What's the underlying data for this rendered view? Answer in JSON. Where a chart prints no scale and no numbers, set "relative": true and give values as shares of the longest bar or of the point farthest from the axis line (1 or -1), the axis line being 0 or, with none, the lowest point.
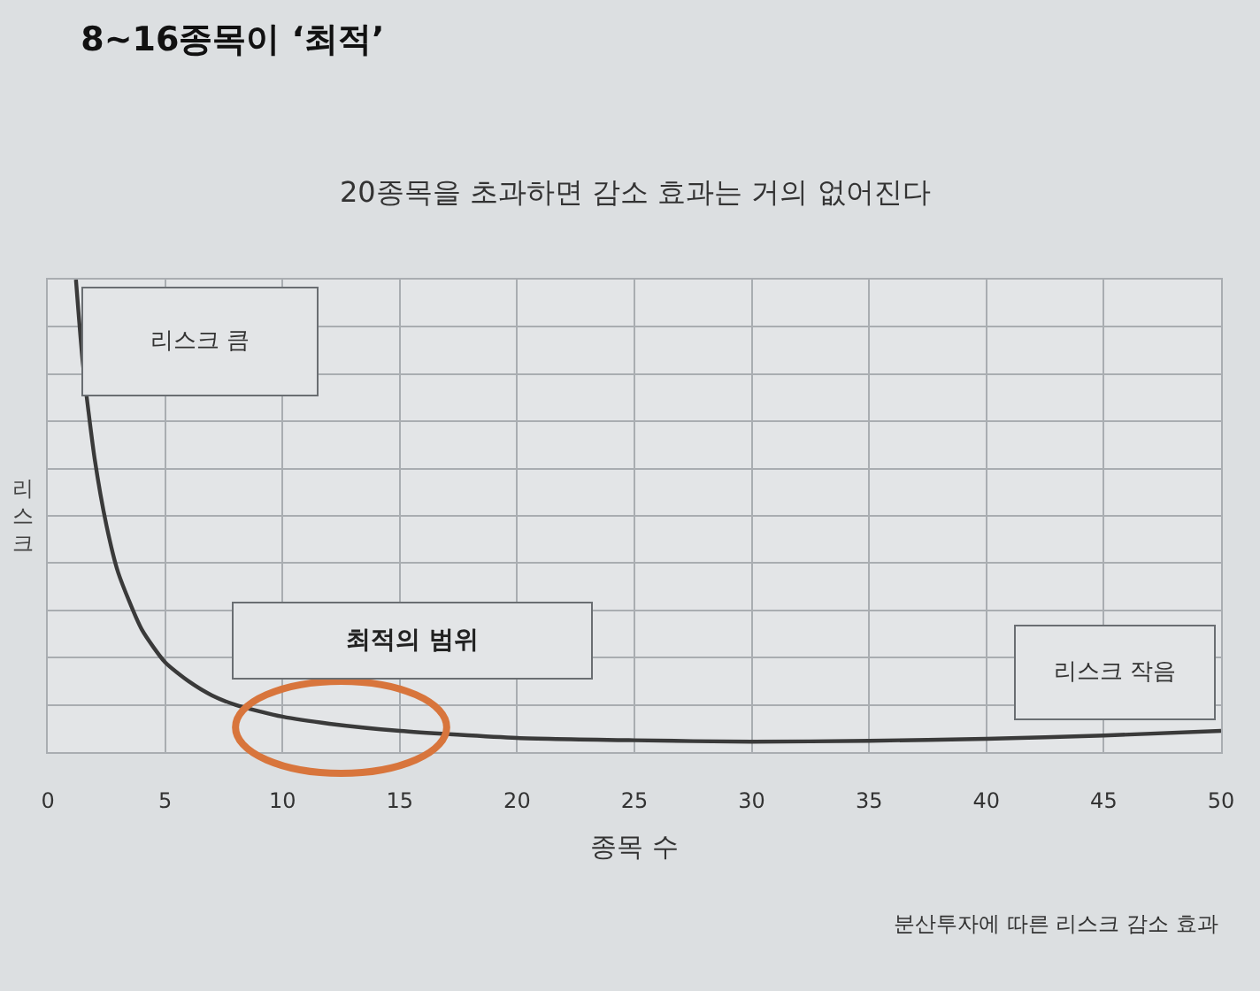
{
  "chart_data": {
    "type": "line",
    "title": "8~16종목이 ‘최적’",
    "subtitle": "20종목을 초과하면 감소 효과는 거의 없어진다",
    "xlabel": "종목 수",
    "ylabel": "리스크",
    "relative": true,
    "x": [
      1.2,
      1.5,
      2,
      2.5,
      3,
      4,
      5,
      6,
      7,
      8,
      10,
      12,
      15,
      20,
      25,
      30,
      35,
      40,
      45,
      50
    ],
    "values": [
      1.0,
      0.82,
      0.62,
      0.48,
      0.38,
      0.26,
      0.19,
      0.15,
      0.12,
      0.1,
      0.075,
      0.06,
      0.045,
      0.03,
      0.025,
      0.022,
      0.024,
      0.028,
      0.035,
      0.045
    ],
    "color": "#3a3a3a",
    "line_style": "solid",
    "xlim": [
      0,
      50
    ],
    "xticks": [
      0,
      5,
      10,
      15,
      20,
      25,
      30,
      35,
      40,
      45,
      50
    ],
    "grid": true,
    "tick_labels": "x",
    "annotations": [
      "리스크 큼",
      "최적의 범위",
      "리스크 작음",
      "분산투자에 따른 리스크 감소 효과"
    ]
  }
}
